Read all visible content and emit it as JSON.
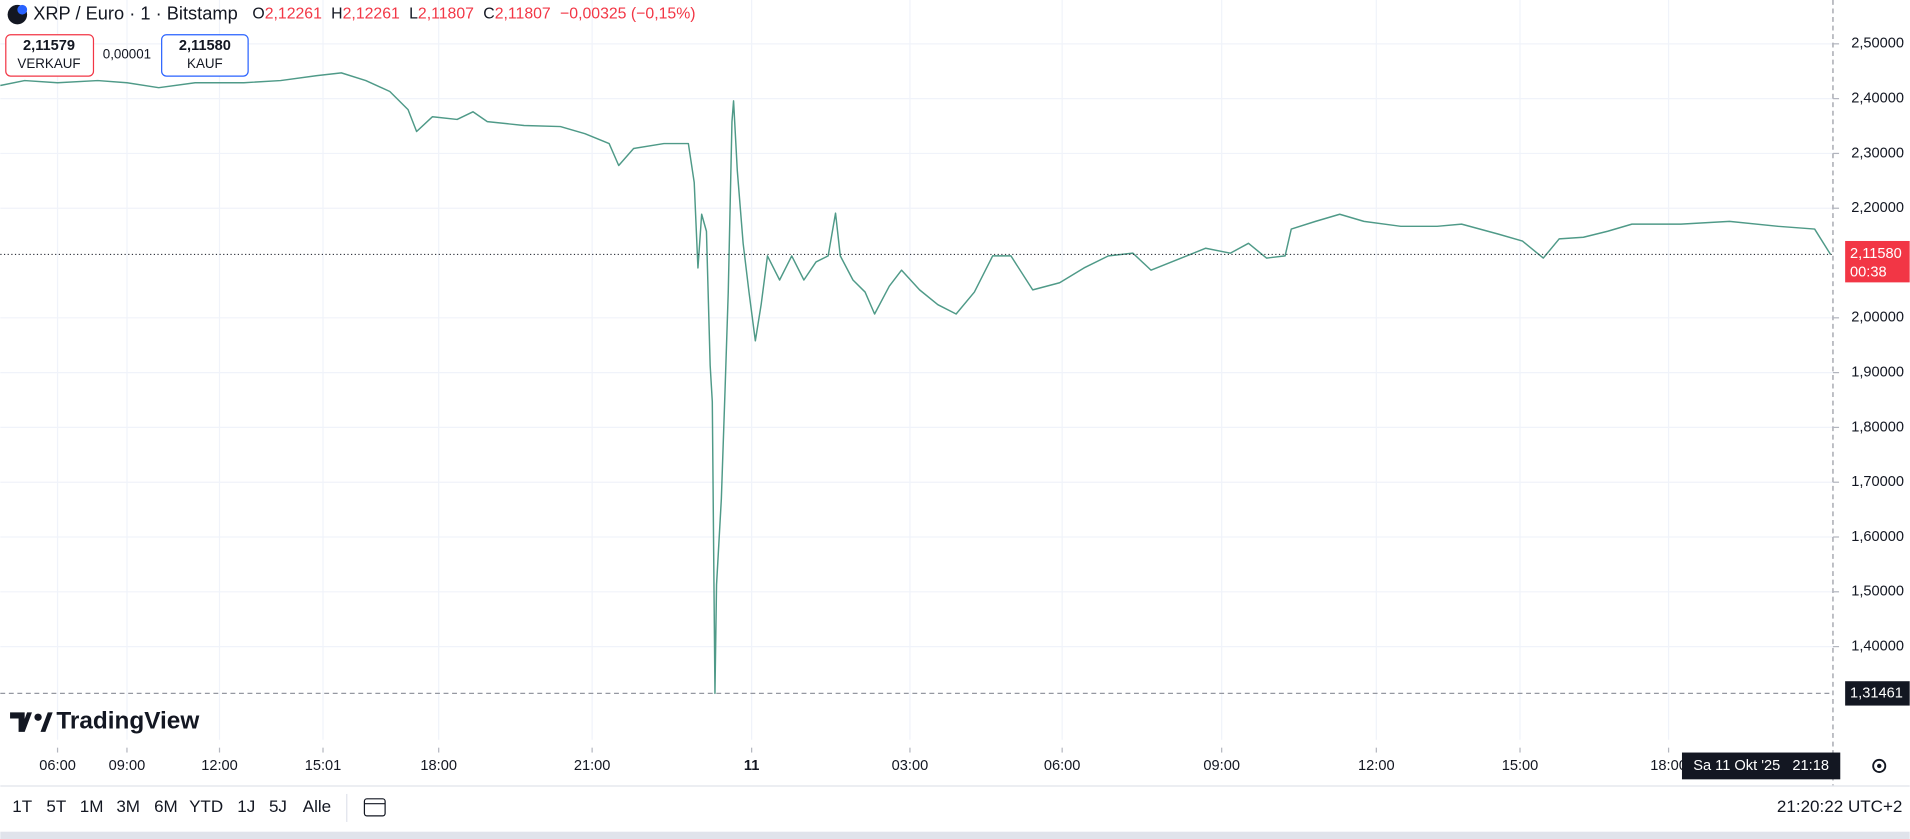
{
  "header": {
    "symbol": "XRP / Euro · 1 · Bitstamp",
    "ohlc": [
      {
        "key": "O",
        "value": "2,12261"
      },
      {
        "key": "H",
        "value": "2,12261"
      },
      {
        "key": "L",
        "value": "2,11807"
      },
      {
        "key": "C",
        "value": "2,11807"
      }
    ],
    "change": "−0,00325 (−0,15%)",
    "sell": {
      "price": "2,11579",
      "label": "VERKAUF"
    },
    "spread": "0,00001",
    "buy": {
      "price": "2,11580",
      "label": "KAUF"
    }
  },
  "logo": "TradingView",
  "crosshair_date": "Sa 11 Okt '25   21:18",
  "toolbar": {
    "ranges": [
      "1T",
      "5T",
      "1M",
      "3M",
      "6M",
      "YTD",
      "1J",
      "5J",
      "Alle"
    ],
    "clock": "21:20:22 UTC+2"
  },
  "chart_data": {
    "type": "line",
    "color": "#4f9a88",
    "grid": true,
    "x": [
      3.53,
      4.58,
      6,
      7.74,
      9,
      10.03,
      11.21,
      12.71,
      13.78,
      14.84,
      15.49,
      16.12,
      16.74,
      17.21,
      17.43,
      17.84,
      18.36,
      18.67,
      18.95,
      19.67,
      20.38,
      20.86,
      21.32,
      21.5,
      21.78,
      22.35,
      22.81,
      22.92,
      22.99,
      23.06,
      23.15,
      23.22,
      23.26,
      23.31,
      23.34,
      23.43,
      23.5,
      23.56,
      23.63,
      23.66,
      23.73,
      23.84,
      23.95,
      24.07,
      24.18,
      24.3,
      24.53,
      24.76,
      24.99,
      25.22,
      25.45,
      25.59,
      25.68,
      25.92,
      26.15,
      26.33,
      26.61,
      26.84,
      27.19,
      27.55,
      27.91,
      28.27,
      28.63,
      28.99,
      29.42,
      29.95,
      30.41,
      30.87,
      31.33,
      31.67,
      32.24,
      32.7,
      33.17,
      33.52,
      33.87,
      34.23,
      34.35,
      34.82,
      35.29,
      35.76,
      36.51,
      37.27,
      37.78,
      38.54,
      39.05,
      39.47,
      39.79,
      40.28,
      40.77,
      41.26,
      42.25,
      43.23,
      44.21,
      44.95,
      45.27
    ],
    "values": [
      2.424,
      2.433,
      2.429,
      2.433,
      2.429,
      2.42,
      2.429,
      2.429,
      2.433,
      2.442,
      2.447,
      2.433,
      2.413,
      2.38,
      2.34,
      2.367,
      2.362,
      2.376,
      2.358,
      2.351,
      2.349,
      2.336,
      2.318,
      2.278,
      2.309,
      2.318,
      2.318,
      2.247,
      2.091,
      2.189,
      2.158,
      1.913,
      1.847,
      1.31461,
      1.513,
      1.669,
      1.869,
      2.047,
      2.358,
      2.396,
      2.269,
      2.136,
      2.047,
      1.958,
      2.024,
      2.113,
      2.069,
      2.113,
      2.069,
      2.102,
      2.113,
      2.191,
      2.113,
      2.069,
      2.047,
      2.007,
      2.058,
      2.087,
      2.051,
      2.024,
      2.007,
      2.047,
      2.113,
      2.113,
      2.051,
      2.064,
      2.091,
      2.113,
      2.118,
      2.087,
      2.109,
      2.127,
      2.118,
      2.136,
      2.109,
      2.113,
      2.162,
      2.176,
      2.189,
      2.176,
      2.167,
      2.167,
      2.171,
      2.153,
      2.14,
      2.109,
      2.144,
      2.147,
      2.158,
      2.171,
      2.171,
      2.176,
      2.167,
      2.162,
      2.1158
    ],
    "xlim": [
      3.53,
      45.32
    ],
    "xticks": [
      {
        "value": 6,
        "label": "06:00"
      },
      {
        "value": 9,
        "label": "09:00"
      },
      {
        "value": 12,
        "label": "12:00"
      },
      {
        "value": 15.017,
        "label": "15:01"
      },
      {
        "value": 18,
        "label": "18:00"
      },
      {
        "value": 21,
        "label": "21:00"
      },
      {
        "value": 24,
        "label": "11"
      },
      {
        "value": 27,
        "label": "03:00"
      },
      {
        "value": 30,
        "label": "06:00"
      },
      {
        "value": 33,
        "label": "09:00"
      },
      {
        "value": 36,
        "label": "12:00"
      },
      {
        "value": 39,
        "label": "15:00"
      },
      {
        "value": 42,
        "label": "18:00"
      }
    ],
    "ylim": [
      1.23,
      2.58
    ],
    "yticks": [
      {
        "value": 2.5,
        "label": "2,50000"
      },
      {
        "value": 2.4,
        "label": "2,40000"
      },
      {
        "value": 2.3,
        "label": "2,30000"
      },
      {
        "value": 2.2,
        "label": "2,20000"
      },
      {
        "value": 2.0,
        "label": "2,00000"
      },
      {
        "value": 1.9,
        "label": "1,90000"
      },
      {
        "value": 1.8,
        "label": "1,80000"
      },
      {
        "value": 1.7,
        "label": "1,70000"
      },
      {
        "value": 1.6,
        "label": "1,60000"
      },
      {
        "value": 1.5,
        "label": "1,50000"
      },
      {
        "value": 1.4,
        "label": "1,40000"
      }
    ],
    "last_price": {
      "value": 2.1158,
      "label": "2,11580",
      "countdown": "00:38",
      "color": "#f23645"
    },
    "low_marker": {
      "value": 1.31461,
      "label": "1,31461"
    }
  }
}
